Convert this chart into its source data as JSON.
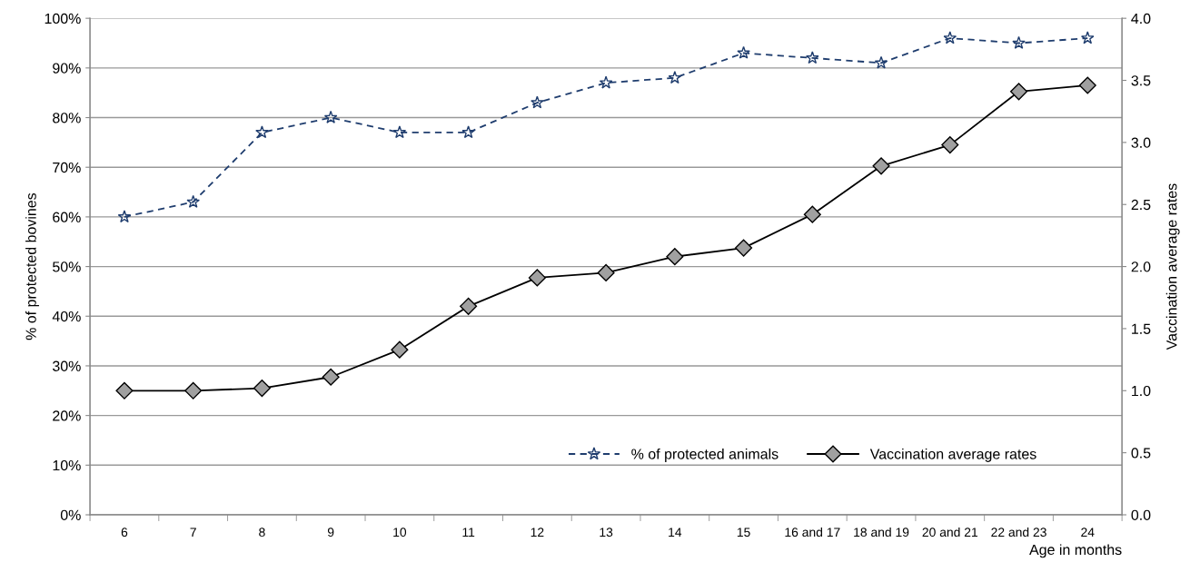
{
  "chart_data": {
    "type": "line",
    "xlabel": "Age in months",
    "ylabel": "% of protected bovines",
    "y2label": "Vaccination average rates",
    "categories": [
      "6",
      "7",
      "8",
      "9",
      "10",
      "11",
      "12",
      "13",
      "14",
      "15",
      "16 and 17",
      "18 and 19",
      "20 and 21",
      "22 and 23",
      "24"
    ],
    "series": [
      {
        "name": "% of protected animals",
        "color": "#1f3d6e",
        "marker": "star",
        "line_style": "dashed",
        "values": [
          60,
          63,
          77,
          80,
          77,
          77,
          83,
          87,
          88,
          93,
          92,
          91,
          96,
          95,
          96
        ]
      },
      {
        "name": "Vaccination average rates",
        "color": "#000000",
        "marker": "diamond",
        "line_style": "solid",
        "axis": "y2",
        "values": [
          1.0,
          1.0,
          1.02,
          1.11,
          1.33,
          1.68,
          1.91,
          1.95,
          2.08,
          2.15,
          2.42,
          2.81,
          2.98,
          3.41,
          3.46
        ]
      }
    ],
    "ylim": [
      0,
      100
    ],
    "yticks": [
      {
        "value": 0,
        "label": "0%"
      },
      {
        "value": 10,
        "label": "10%"
      },
      {
        "value": 20,
        "label": "20%"
      },
      {
        "value": 30,
        "label": "30%"
      },
      {
        "value": 40,
        "label": "40%"
      },
      {
        "value": 50,
        "label": "50%"
      },
      {
        "value": 60,
        "label": "60%"
      },
      {
        "value": 70,
        "label": "70%"
      },
      {
        "value": 80,
        "label": "80%"
      },
      {
        "value": 90,
        "label": "90%"
      },
      {
        "value": 100,
        "label": "100%"
      }
    ],
    "y2lim": [
      0,
      4
    ],
    "y2ticks": [
      {
        "value": 0,
        "label": "0.0"
      },
      {
        "value": 0.5,
        "label": "0.5"
      },
      {
        "value": 1,
        "label": "1.0"
      },
      {
        "value": 1.5,
        "label": "1.5"
      },
      {
        "value": 2,
        "label": "2.0"
      },
      {
        "value": 2.5,
        "label": "2.5"
      },
      {
        "value": 3,
        "label": "3.0"
      },
      {
        "value": 3.5,
        "label": "3.5"
      },
      {
        "value": 4,
        "label": "4.0"
      }
    ],
    "grid": "y",
    "legend": "bottom right"
  }
}
